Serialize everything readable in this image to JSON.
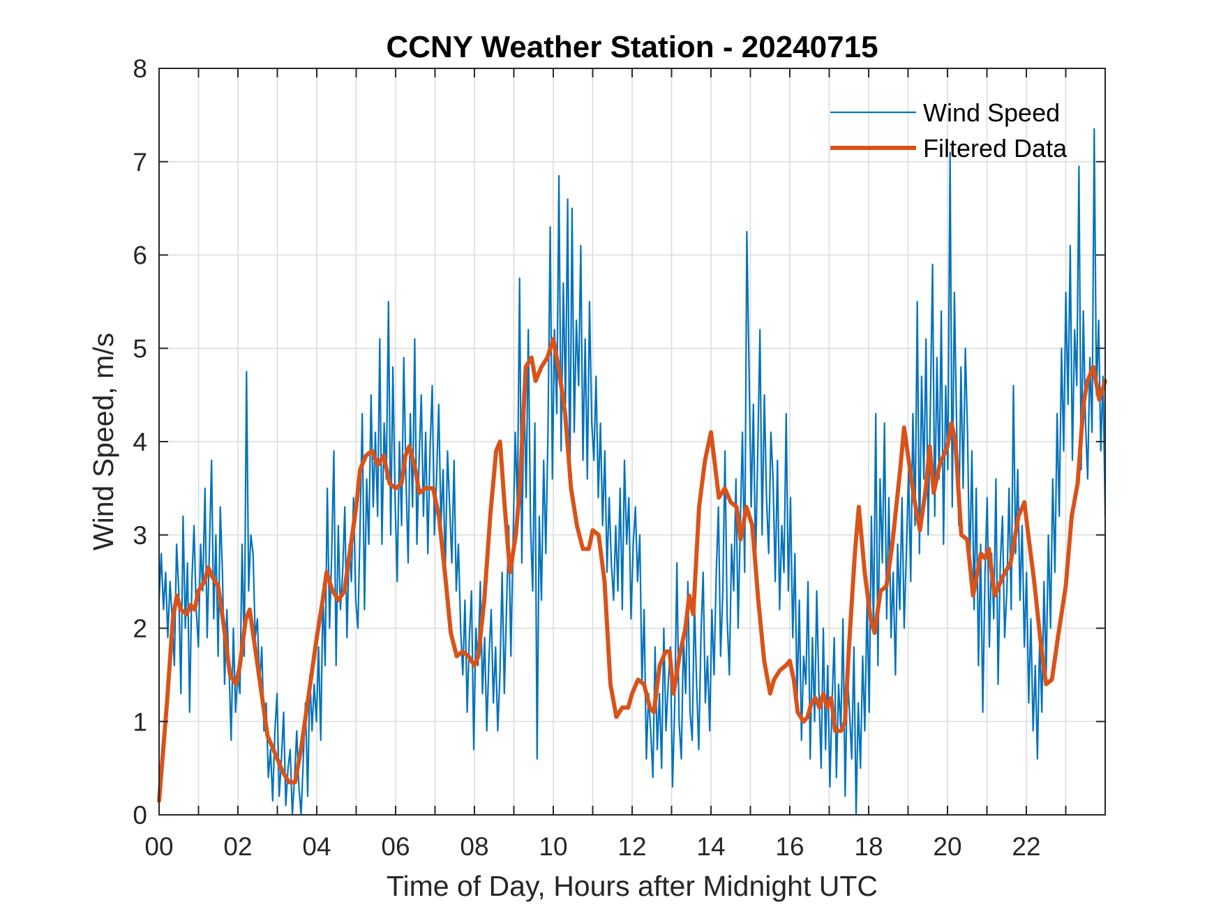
{
  "chart_data": {
    "type": "line",
    "title": "CCNY Weather Station - 20240715",
    "xlabel": "Time of Day, Hours after Midnight UTC",
    "ylabel": "Wind Speed, m/s",
    "xlim": [
      0,
      24
    ],
    "ylim": [
      0,
      8
    ],
    "grid": true,
    "xticks": [
      0,
      1,
      2,
      3,
      4,
      5,
      6,
      7,
      8,
      9,
      10,
      11,
      12,
      13,
      14,
      15,
      16,
      17,
      18,
      19,
      20,
      21,
      22,
      23
    ],
    "xtick_labels": [
      "00",
      "",
      "02",
      "",
      "04",
      "",
      "06",
      "",
      "08",
      "",
      "10",
      "",
      "12",
      "",
      "14",
      "",
      "16",
      "",
      "18",
      "",
      "20",
      "",
      "22",
      ""
    ],
    "yticks": [
      0,
      1,
      2,
      3,
      4,
      5,
      6,
      7,
      8
    ],
    "ytick_labels": [
      "0",
      "1",
      "2",
      "3",
      "4",
      "5",
      "6",
      "7",
      "8"
    ],
    "legend": {
      "location": "top-right",
      "entries": [
        "Wind Speed",
        "Filtered Data"
      ]
    },
    "colors": {
      "Wind Speed": "#0072BD",
      "Filtered Data": "#D95319"
    },
    "series": [
      {
        "name": "Wind Speed",
        "x_start": 0,
        "x_step": 0.05,
        "values": [
          2.3,
          2.8,
          2.2,
          2.6,
          1.9,
          2.5,
          2.1,
          1.6,
          2.9,
          2.4,
          1.3,
          3.2,
          2.0,
          2.7,
          1.1,
          2.5,
          3.1,
          2.2,
          1.8,
          2.9,
          2.4,
          3.5,
          1.9,
          2.8,
          3.8,
          2.1,
          3.0,
          1.7,
          3.3,
          2.6,
          1.4,
          2.2,
          1.6,
          0.8,
          2.0,
          1.1,
          1.5,
          1.3,
          2.9,
          1.7,
          4.75,
          2.4,
          3.0,
          2.8,
          1.9,
          2.1,
          1.4,
          1.8,
          0.9,
          1.2,
          0.4,
          0.7,
          0.15,
          0.9,
          1.3,
          0.2,
          0.6,
          1.1,
          0.1,
          0.5,
          0.7,
          0.0,
          0.4,
          0.9,
          0.3,
          0.0,
          0.6,
          1.2,
          0.2,
          1.5,
          0.9,
          1.4,
          1.0,
          1.8,
          0.8,
          2.4,
          1.6,
          3.5,
          2.0,
          2.8,
          3.9,
          1.6,
          3.1,
          2.2,
          2.6,
          3.3,
          1.9,
          2.9,
          2.5,
          3.4,
          2.3,
          2.0,
          3.1,
          4.3,
          2.2,
          3.6,
          2.9,
          4.5,
          3.3,
          4.1,
          3.2,
          5.1,
          2.9,
          4.2,
          3.6,
          5.5,
          3.0,
          4.8,
          3.4,
          2.5,
          4.0,
          3.1,
          4.9,
          3.6,
          2.7,
          4.3,
          3.3,
          5.1,
          2.9,
          3.8,
          4.5,
          3.2,
          4.1,
          2.8,
          3.9,
          4.6,
          3.0,
          3.6,
          4.4,
          3.1,
          3.7,
          2.6,
          3.9,
          3.3,
          2.7,
          3.8,
          2.4,
          2.9,
          2.0,
          1.5,
          2.3,
          1.1,
          1.9,
          2.4,
          0.7,
          2.0,
          1.6,
          2.5,
          1.3,
          1.9,
          0.9,
          1.7,
          2.2,
          1.2,
          1.8,
          0.9,
          1.5,
          2.6,
          1.3,
          2.2,
          3.1,
          1.7,
          2.9,
          4.1,
          3.3,
          5.75,
          2.7,
          4.6,
          3.4,
          5.2,
          3.1,
          2.4,
          4.2,
          0.6,
          3.2,
          2.3,
          3.8,
          2.8,
          4.1,
          6.3,
          3.6,
          5.2,
          4.3,
          6.85,
          3.9,
          5.7,
          4.4,
          6.6,
          3.5,
          6.5,
          4.1,
          5.3,
          4.6,
          6.1,
          3.8,
          5.1,
          3.6,
          5.5,
          4.2,
          3.8,
          4.7,
          3.4,
          4.2,
          3.1,
          3.9,
          2.6,
          3.4,
          2.7,
          2.3,
          3.1,
          2.4,
          3.5,
          2.2,
          3.8,
          2.9,
          3.4,
          2.1,
          2.9,
          3.3,
          2.5,
          3.0,
          1.4,
          2.2,
          0.6,
          1.3,
          0.9,
          0.4,
          1.8,
          0.7,
          1.3,
          0.5,
          2.0,
          0.9,
          1.4,
          1.8,
          0.3,
          1.2,
          2.7,
          1.0,
          0.6,
          1.9,
          1.3,
          2.5,
          1.1,
          0.8,
          2.3,
          1.4,
          0.7,
          1.9,
          2.6,
          1.2,
          1.7,
          0.9,
          2.2,
          1.5,
          2.6,
          3.3,
          1.7,
          2.4,
          3.9,
          2.1,
          1.5,
          2.9,
          2.4,
          3.6,
          2.0,
          3.1,
          4.1,
          2.6,
          6.25,
          4.8,
          3.3,
          4.4,
          2.7,
          3.9,
          5.2,
          3.0,
          4.5,
          3.4,
          2.8,
          4.1,
          3.6,
          2.5,
          3.8,
          2.2,
          3.1,
          2.6,
          4.3,
          2.4,
          3.4,
          1.9,
          2.8,
          1.2,
          2.3,
          0.8,
          1.7,
          1.4,
          2.5,
          0.6,
          1.9,
          1.0,
          2.4,
          1.3,
          0.5,
          2.0,
          0.7,
          1.6,
          0.3,
          1.2,
          1.9,
          0.4,
          1.4,
          0.9,
          2.1,
          0.2,
          1.5,
          1.1,
          0.6,
          1.8,
          0.0,
          1.2,
          0.5,
          1.7,
          0.9,
          2.3,
          1.1,
          3.2,
          2.0,
          4.3,
          1.6,
          3.6,
          2.7,
          4.2,
          2.1,
          3.4,
          1.9,
          2.6,
          1.5,
          2.9,
          2.2,
          3.4,
          2.0,
          2.8,
          3.7,
          2.5,
          4.3,
          3.1,
          5.5,
          2.8,
          4.7,
          3.6,
          5.1,
          3.0,
          4.4,
          5.9,
          3.2,
          4.9,
          3.6,
          5.4,
          2.9,
          4.6,
          3.7,
          7.1,
          3.3,
          5.6,
          4.2,
          3.1,
          4.8,
          3.5,
          5.0,
          4.1,
          2.6,
          3.9,
          2.2,
          3.5,
          1.6,
          2.9,
          1.1,
          2.6,
          3.4,
          1.8,
          2.8,
          2.1,
          3.6,
          1.4,
          2.7,
          3.2,
          1.9,
          2.4,
          3.5,
          2.2,
          4.6,
          2.8,
          3.7,
          2.3,
          3.1,
          1.8,
          2.6,
          1.2,
          2.1,
          0.9,
          1.6,
          0.6,
          1.9,
          1.1,
          2.5,
          1.5,
          3.0,
          2.0,
          3.6,
          2.6,
          4.3,
          3.2,
          5.0,
          3.9,
          5.6,
          4.4,
          6.1,
          3.8,
          5.2,
          4.6,
          6.95,
          3.7,
          5.4,
          4.2,
          3.6,
          4.9,
          4.1,
          7.35,
          4.5,
          5.3,
          3.9,
          4.7,
          3.2
        ]
      },
      {
        "name": "Filtered Data",
        "x": [
          0.0,
          0.2,
          0.35,
          0.45,
          0.55,
          0.7,
          0.8,
          0.9,
          1.0,
          1.15,
          1.25,
          1.35,
          1.5,
          1.65,
          1.8,
          1.95,
          2.05,
          2.2,
          2.3,
          2.45,
          2.6,
          2.75,
          2.85,
          3.0,
          3.15,
          3.3,
          3.45,
          3.6,
          3.8,
          4.0,
          4.15,
          4.25,
          4.4,
          4.55,
          4.7,
          4.85,
          5.0,
          5.1,
          5.25,
          5.4,
          5.55,
          5.7,
          5.85,
          6.0,
          6.15,
          6.25,
          6.35,
          6.5,
          6.6,
          6.75,
          6.95,
          7.1,
          7.25,
          7.4,
          7.55,
          7.7,
          7.85,
          8.0,
          8.1,
          8.25,
          8.4,
          8.55,
          8.65,
          8.75,
          8.9,
          9.05,
          9.15,
          9.3,
          9.45,
          9.55,
          9.7,
          9.85,
          10.0,
          10.15,
          10.3,
          10.45,
          10.6,
          10.75,
          10.9,
          11.0,
          11.15,
          11.3,
          11.45,
          11.6,
          11.75,
          11.9,
          12.0,
          12.15,
          12.3,
          12.45,
          12.55,
          12.7,
          12.85,
          12.95,
          13.05,
          13.2,
          13.35,
          13.45,
          13.55,
          13.7,
          13.85,
          14.0,
          14.1,
          14.2,
          14.35,
          14.5,
          14.65,
          14.75,
          14.9,
          15.05,
          15.2,
          15.35,
          15.5,
          15.6,
          15.75,
          15.9,
          16.0,
          16.1,
          16.2,
          16.35,
          16.45,
          16.55,
          16.65,
          16.75,
          16.85,
          16.95,
          17.05,
          17.15,
          17.3,
          17.4,
          17.5,
          17.65,
          17.75,
          17.9,
          18.05,
          18.15,
          18.3,
          18.45,
          18.6,
          18.8,
          18.9,
          19.05,
          19.15,
          19.3,
          19.45,
          19.55,
          19.65,
          19.8,
          20.0,
          20.1,
          20.2,
          20.35,
          20.5,
          20.65,
          20.85,
          20.95,
          21.05,
          21.2,
          21.4,
          21.6,
          21.8,
          21.95,
          22.05,
          22.2,
          22.35,
          22.5,
          22.65,
          22.8,
          23.0,
          23.15,
          23.3,
          23.45,
          23.55,
          23.7,
          23.85,
          24.0
        ],
        "values": [
          0.15,
          1.2,
          2.1,
          2.35,
          2.2,
          2.15,
          2.25,
          2.2,
          2.4,
          2.5,
          2.65,
          2.55,
          2.45,
          2.0,
          1.5,
          1.4,
          1.6,
          2.1,
          2.2,
          1.75,
          1.3,
          0.85,
          0.75,
          0.6,
          0.45,
          0.35,
          0.35,
          0.7,
          1.3,
          1.9,
          2.3,
          2.6,
          2.4,
          2.3,
          2.4,
          2.85,
          3.3,
          3.7,
          3.85,
          3.9,
          3.75,
          3.85,
          3.55,
          3.5,
          3.55,
          3.85,
          3.95,
          3.7,
          3.45,
          3.5,
          3.5,
          3.2,
          2.6,
          1.95,
          1.7,
          1.75,
          1.7,
          1.6,
          1.7,
          2.3,
          3.2,
          3.9,
          4.0,
          3.4,
          2.6,
          3.0,
          3.5,
          4.8,
          4.9,
          4.65,
          4.8,
          4.9,
          5.1,
          4.75,
          4.3,
          3.5,
          3.1,
          2.85,
          2.85,
          3.05,
          3.0,
          2.5,
          1.4,
          1.05,
          1.15,
          1.15,
          1.3,
          1.45,
          1.4,
          1.15,
          1.1,
          1.6,
          1.75,
          1.75,
          1.3,
          1.7,
          2.0,
          2.35,
          2.15,
          3.3,
          3.8,
          4.1,
          3.75,
          3.4,
          3.5,
          3.35,
          3.3,
          2.95,
          3.3,
          3.1,
          2.3,
          1.65,
          1.3,
          1.45,
          1.55,
          1.6,
          1.65,
          1.45,
          1.1,
          1.0,
          1.05,
          1.2,
          1.25,
          1.15,
          1.3,
          1.15,
          1.25,
          0.9,
          0.9,
          1.0,
          1.8,
          2.8,
          3.3,
          2.6,
          2.1,
          1.95,
          2.4,
          2.45,
          2.9,
          3.7,
          4.15,
          3.7,
          3.4,
          3.05,
          3.5,
          3.95,
          3.45,
          3.75,
          3.95,
          4.2,
          4.0,
          3.0,
          2.95,
          2.35,
          2.8,
          2.75,
          2.85,
          2.35,
          2.55,
          2.7,
          3.2,
          3.35,
          3.0,
          2.5,
          1.9,
          1.4,
          1.45,
          1.9,
          2.45,
          3.2,
          3.55,
          4.4,
          4.65,
          4.8,
          4.45,
          4.65
        ]
      }
    ]
  }
}
